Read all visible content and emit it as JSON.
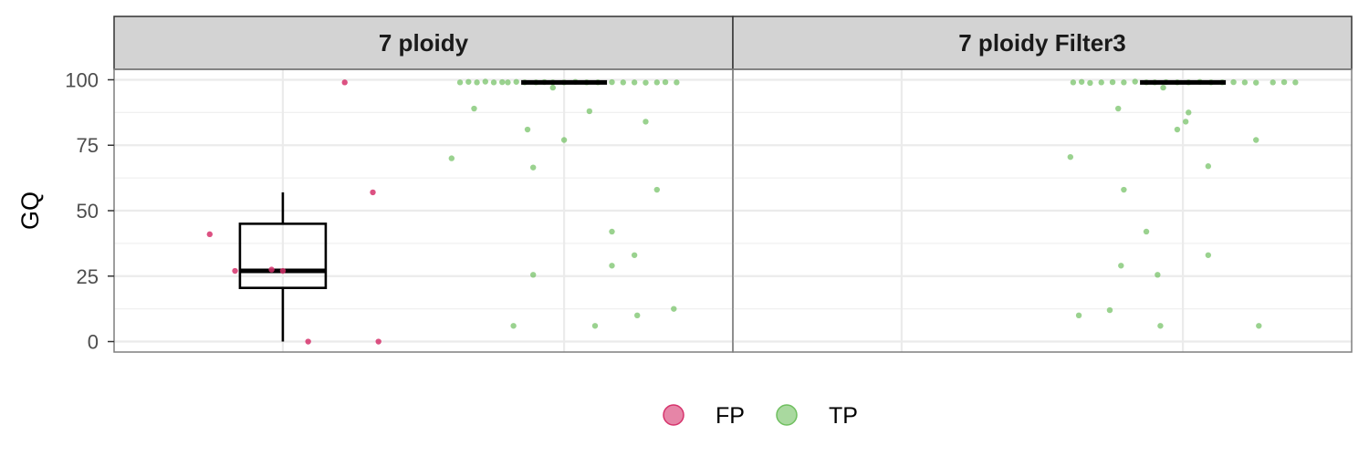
{
  "chart_data": {
    "type": "scatter",
    "ylabel": "GQ",
    "ylim": [
      -4,
      104
    ],
    "yticks": [
      0,
      25,
      50,
      75,
      100
    ],
    "grid": true,
    "legend_position": "bottom",
    "colors": {
      "FP": "#d6336c",
      "TP": "#6fbf5f",
      "box": "#000000",
      "strip_fill": "#d3d3d3"
    },
    "legend": [
      {
        "key": "FP",
        "label": "FP"
      },
      {
        "key": "TP",
        "label": "TP"
      }
    ],
    "panels": [
      {
        "title": "7 ploidy",
        "box": {
          "category": "FP",
          "q1": 20.5,
          "median": 27,
          "q3": 45,
          "min": 0,
          "max": 57
        },
        "medians": [
          {
            "category": "TP",
            "median": 99
          }
        ],
        "points": [
          {
            "category": "FP",
            "x": 0.74,
            "y": 41
          },
          {
            "category": "FP",
            "x": 0.83,
            "y": 27
          },
          {
            "category": "FP",
            "x": 0.96,
            "y": 27.5
          },
          {
            "category": "FP",
            "x": 1.0,
            "y": 27
          },
          {
            "category": "FP",
            "x": 1.09,
            "y": 0
          },
          {
            "category": "FP",
            "x": 1.22,
            "y": 99
          },
          {
            "category": "FP",
            "x": 1.32,
            "y": 57
          },
          {
            "category": "FP",
            "x": 1.34,
            "y": 0
          },
          {
            "category": "TP",
            "x": 1.63,
            "y": 99
          },
          {
            "category": "TP",
            "x": 1.66,
            "y": 99.2
          },
          {
            "category": "TP",
            "x": 1.69,
            "y": 99
          },
          {
            "category": "TP",
            "x": 1.72,
            "y": 99.3
          },
          {
            "category": "TP",
            "x": 1.75,
            "y": 99
          },
          {
            "category": "TP",
            "x": 1.78,
            "y": 99.1
          },
          {
            "category": "TP",
            "x": 1.8,
            "y": 99
          },
          {
            "category": "TP",
            "x": 1.83,
            "y": 99.2
          },
          {
            "category": "TP",
            "x": 1.86,
            "y": 99
          },
          {
            "category": "TP",
            "x": 1.9,
            "y": 99
          },
          {
            "category": "TP",
            "x": 1.93,
            "y": 99.1
          },
          {
            "category": "TP",
            "x": 1.96,
            "y": 99
          },
          {
            "category": "TP",
            "x": 2.0,
            "y": 99
          },
          {
            "category": "TP",
            "x": 2.04,
            "y": 99.2
          },
          {
            "category": "TP",
            "x": 2.08,
            "y": 99
          },
          {
            "category": "TP",
            "x": 2.12,
            "y": 99
          },
          {
            "category": "TP",
            "x": 2.17,
            "y": 99.1
          },
          {
            "category": "TP",
            "x": 2.21,
            "y": 99
          },
          {
            "category": "TP",
            "x": 2.25,
            "y": 99
          },
          {
            "category": "TP",
            "x": 2.29,
            "y": 98.9
          },
          {
            "category": "TP",
            "x": 2.33,
            "y": 99
          },
          {
            "category": "TP",
            "x": 2.36,
            "y": 99.1
          },
          {
            "category": "TP",
            "x": 2.4,
            "y": 99
          },
          {
            "category": "TP",
            "x": 1.96,
            "y": 97
          },
          {
            "category": "TP",
            "x": 1.68,
            "y": 89
          },
          {
            "category": "TP",
            "x": 2.09,
            "y": 88
          },
          {
            "category": "TP",
            "x": 2.29,
            "y": 84
          },
          {
            "category": "TP",
            "x": 1.87,
            "y": 81
          },
          {
            "category": "TP",
            "x": 2.0,
            "y": 77
          },
          {
            "category": "TP",
            "x": 1.6,
            "y": 70
          },
          {
            "category": "TP",
            "x": 1.89,
            "y": 66.5
          },
          {
            "category": "TP",
            "x": 2.33,
            "y": 58
          },
          {
            "category": "TP",
            "x": 2.17,
            "y": 42
          },
          {
            "category": "TP",
            "x": 2.25,
            "y": 33
          },
          {
            "category": "TP",
            "x": 2.17,
            "y": 29
          },
          {
            "category": "TP",
            "x": 1.89,
            "y": 25.5
          },
          {
            "category": "TP",
            "x": 2.39,
            "y": 12.5
          },
          {
            "category": "TP",
            "x": 2.26,
            "y": 10
          },
          {
            "category": "TP",
            "x": 1.82,
            "y": 6
          },
          {
            "category": "TP",
            "x": 2.11,
            "y": 6
          }
        ]
      },
      {
        "title": "7 ploidy Filter3",
        "box": null,
        "medians": [
          {
            "category": "TP",
            "median": 99
          }
        ],
        "points": [
          {
            "category": "TP",
            "x": 1.61,
            "y": 99
          },
          {
            "category": "TP",
            "x": 1.64,
            "y": 99.2
          },
          {
            "category": "TP",
            "x": 1.67,
            "y": 98.8
          },
          {
            "category": "TP",
            "x": 1.71,
            "y": 99
          },
          {
            "category": "TP",
            "x": 1.75,
            "y": 99.1
          },
          {
            "category": "TP",
            "x": 1.79,
            "y": 99
          },
          {
            "category": "TP",
            "x": 1.83,
            "y": 99.3
          },
          {
            "category": "TP",
            "x": 1.87,
            "y": 99
          },
          {
            "category": "TP",
            "x": 1.9,
            "y": 99
          },
          {
            "category": "TP",
            "x": 1.94,
            "y": 99.1
          },
          {
            "category": "TP",
            "x": 1.98,
            "y": 99
          },
          {
            "category": "TP",
            "x": 2.02,
            "y": 99
          },
          {
            "category": "TP",
            "x": 2.06,
            "y": 99.2
          },
          {
            "category": "TP",
            "x": 2.1,
            "y": 99
          },
          {
            "category": "TP",
            "x": 2.14,
            "y": 99
          },
          {
            "category": "TP",
            "x": 2.18,
            "y": 99.1
          },
          {
            "category": "TP",
            "x": 2.22,
            "y": 99
          },
          {
            "category": "TP",
            "x": 2.26,
            "y": 98.9
          },
          {
            "category": "TP",
            "x": 2.32,
            "y": 99
          },
          {
            "category": "TP",
            "x": 2.36,
            "y": 99.1
          },
          {
            "category": "TP",
            "x": 2.4,
            "y": 99
          },
          {
            "category": "TP",
            "x": 1.93,
            "y": 97
          },
          {
            "category": "TP",
            "x": 1.77,
            "y": 89
          },
          {
            "category": "TP",
            "x": 2.02,
            "y": 87.5
          },
          {
            "category": "TP",
            "x": 2.01,
            "y": 84
          },
          {
            "category": "TP",
            "x": 1.98,
            "y": 81
          },
          {
            "category": "TP",
            "x": 2.26,
            "y": 77
          },
          {
            "category": "TP",
            "x": 1.6,
            "y": 70.5
          },
          {
            "category": "TP",
            "x": 2.09,
            "y": 67
          },
          {
            "category": "TP",
            "x": 1.79,
            "y": 58
          },
          {
            "category": "TP",
            "x": 1.87,
            "y": 42
          },
          {
            "category": "TP",
            "x": 2.09,
            "y": 33
          },
          {
            "category": "TP",
            "x": 1.78,
            "y": 29
          },
          {
            "category": "TP",
            "x": 1.91,
            "y": 25.5
          },
          {
            "category": "TP",
            "x": 1.74,
            "y": 12
          },
          {
            "category": "TP",
            "x": 1.63,
            "y": 10
          },
          {
            "category": "TP",
            "x": 1.92,
            "y": 6
          },
          {
            "category": "TP",
            "x": 2.27,
            "y": 6
          }
        ]
      }
    ]
  }
}
